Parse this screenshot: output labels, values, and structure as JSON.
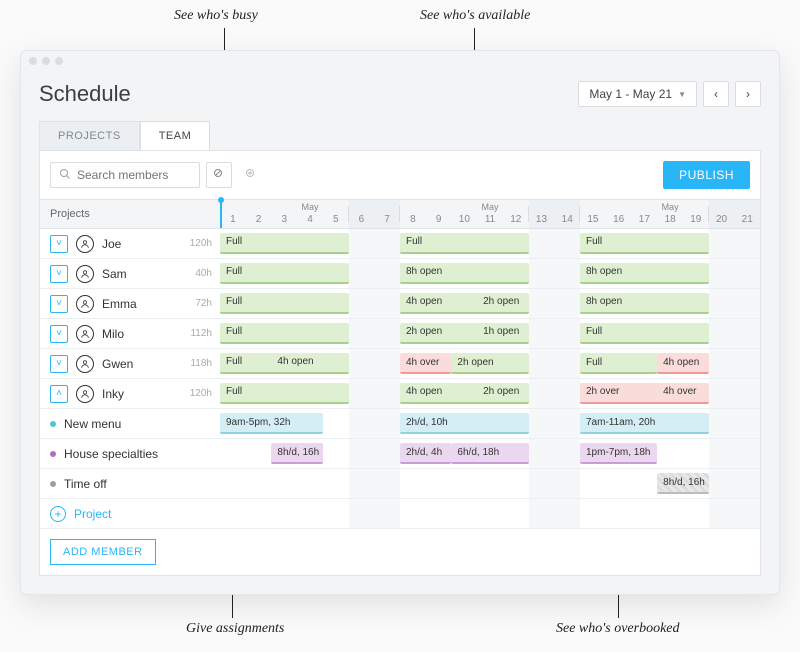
{
  "callouts": {
    "busy": "See who's busy",
    "available": "See who's available",
    "assignments": "Give assignments",
    "overbooked": "See who's overbooked"
  },
  "header": {
    "title": "Schedule",
    "date_range": "May 1 - May 21"
  },
  "tabs": {
    "projects": "PROJECTS",
    "team": "TEAM"
  },
  "toolbar": {
    "search_placeholder": "Search members",
    "publish": "PUBLISH"
  },
  "days": {
    "label": "Projects",
    "month": "May",
    "total": 21,
    "weekend": [
      6,
      7,
      13,
      14,
      20,
      21
    ],
    "div_after": [
      5,
      7,
      12,
      14,
      19
    ],
    "month_label_days": [
      4,
      11,
      18
    ],
    "today": 1
  },
  "members": [
    {
      "name": "Joe",
      "hours": "120h",
      "expanded": false,
      "blocks": [
        {
          "week": 0,
          "type": "green",
          "segs": [
            {
              "label": "Full",
              "from": 0,
              "to": 5
            }
          ]
        },
        {
          "week": 1,
          "type": "green",
          "segs": [
            {
              "label": "Full",
              "from": 0,
              "to": 5
            }
          ]
        },
        {
          "week": 2,
          "type": "green",
          "segs": [
            {
              "label": "Full",
              "from": 0,
              "to": 5
            }
          ]
        }
      ]
    },
    {
      "name": "Sam",
      "hours": "40h",
      "expanded": false,
      "blocks": [
        {
          "week": 0,
          "type": "green",
          "segs": [
            {
              "label": "Full",
              "from": 0,
              "to": 5
            }
          ]
        },
        {
          "week": 1,
          "type": "green",
          "segs": [
            {
              "label": "8h open",
              "from": 0,
              "to": 5
            }
          ]
        },
        {
          "week": 2,
          "type": "green",
          "segs": [
            {
              "label": "8h open",
              "from": 0,
              "to": 5
            }
          ]
        }
      ]
    },
    {
      "name": "Emma",
      "hours": "72h",
      "expanded": false,
      "blocks": [
        {
          "week": 0,
          "type": "green",
          "segs": [
            {
              "label": "Full",
              "from": 0,
              "to": 5
            }
          ]
        },
        {
          "week": 1,
          "type": "green",
          "segs": [
            {
              "label": "4h open",
              "from": 0,
              "to": 3
            },
            {
              "label": "2h open",
              "from": 3,
              "to": 5
            }
          ]
        },
        {
          "week": 2,
          "type": "green",
          "segs": [
            {
              "label": "8h open",
              "from": 0,
              "to": 5
            }
          ]
        }
      ]
    },
    {
      "name": "Milo",
      "hours": "112h",
      "expanded": false,
      "blocks": [
        {
          "week": 0,
          "type": "green",
          "segs": [
            {
              "label": "Full",
              "from": 0,
              "to": 5
            }
          ]
        },
        {
          "week": 1,
          "type": "green",
          "segs": [
            {
              "label": "2h open",
              "from": 0,
              "to": 3
            },
            {
              "label": "1h open",
              "from": 3,
              "to": 5
            }
          ]
        },
        {
          "week": 2,
          "type": "green",
          "segs": [
            {
              "label": "Full",
              "from": 0,
              "to": 5
            }
          ]
        }
      ]
    },
    {
      "name": "Gwen",
      "hours": "118h",
      "expanded": false,
      "blocks": [
        {
          "week": 0,
          "type": "green",
          "segs": [
            {
              "label": "Full",
              "from": 0,
              "to": 2
            },
            {
              "label": "4h open",
              "from": 2,
              "to": 5
            }
          ]
        },
        {
          "week": 1,
          "type": "mixed",
          "segs": [
            {
              "label": "4h over",
              "from": 0,
              "to": 2,
              "type": "red"
            },
            {
              "label": "2h open",
              "from": 2,
              "to": 5,
              "type": "green"
            }
          ]
        },
        {
          "week": 2,
          "type": "mixed",
          "segs": [
            {
              "label": "Full",
              "from": 0,
              "to": 3,
              "type": "green"
            },
            {
              "label": "4h open",
              "from": 3,
              "to": 5,
              "type": "red"
            }
          ]
        }
      ]
    },
    {
      "name": "Inky",
      "hours": "120h",
      "expanded": true,
      "blocks": [
        {
          "week": 0,
          "type": "green",
          "segs": [
            {
              "label": "Full",
              "from": 0,
              "to": 5
            }
          ]
        },
        {
          "week": 1,
          "type": "green",
          "segs": [
            {
              "label": "4h open",
              "from": 0,
              "to": 3
            },
            {
              "label": "2h open",
              "from": 3,
              "to": 5
            }
          ]
        },
        {
          "week": 2,
          "type": "red",
          "segs": [
            {
              "label": "2h over",
              "from": 0,
              "to": 3
            },
            {
              "label": "4h over",
              "from": 3,
              "to": 5
            }
          ]
        }
      ]
    }
  ],
  "projects": [
    {
      "name": "New menu",
      "color": "#4fc3d9",
      "bars": [
        {
          "week": 0,
          "from": 0,
          "to": 4,
          "label": "9am-5pm, 32h",
          "type": "cyan"
        },
        {
          "week": 1,
          "from": 0,
          "to": 5,
          "label": "2h/d, 10h",
          "type": "cyan"
        },
        {
          "week": 2,
          "from": 0,
          "to": 5,
          "label": "7am-11am, 20h",
          "type": "cyan"
        }
      ]
    },
    {
      "name": "House specialties",
      "color": "#b06fc1",
      "bars": [
        {
          "week": 0,
          "from": 2,
          "to": 4,
          "label": "8h/d, 16h",
          "type": "purple"
        },
        {
          "week": 1,
          "from": 0,
          "to": 2,
          "label": "2h/d, 4h",
          "type": "purple"
        },
        {
          "week": 1,
          "from": 2,
          "to": 5,
          "label": "6h/d, 18h",
          "type": "purple"
        },
        {
          "week": 2,
          "from": 0,
          "to": 3,
          "label": "1pm-7pm, 18h",
          "type": "purple"
        }
      ]
    },
    {
      "name": "Time off",
      "color": "#9e9e9e",
      "bars": [
        {
          "week": 2,
          "from": 3,
          "to": 5,
          "label": "8h/d, 16h",
          "type": "gray"
        }
      ]
    }
  ],
  "footer": {
    "add_project": "Project",
    "add_member": "ADD MEMBER"
  },
  "layout": {
    "week_starts": [
      1,
      8,
      15
    ],
    "week_len": 5,
    "colors": {
      "accent": "#29b6f6"
    }
  }
}
